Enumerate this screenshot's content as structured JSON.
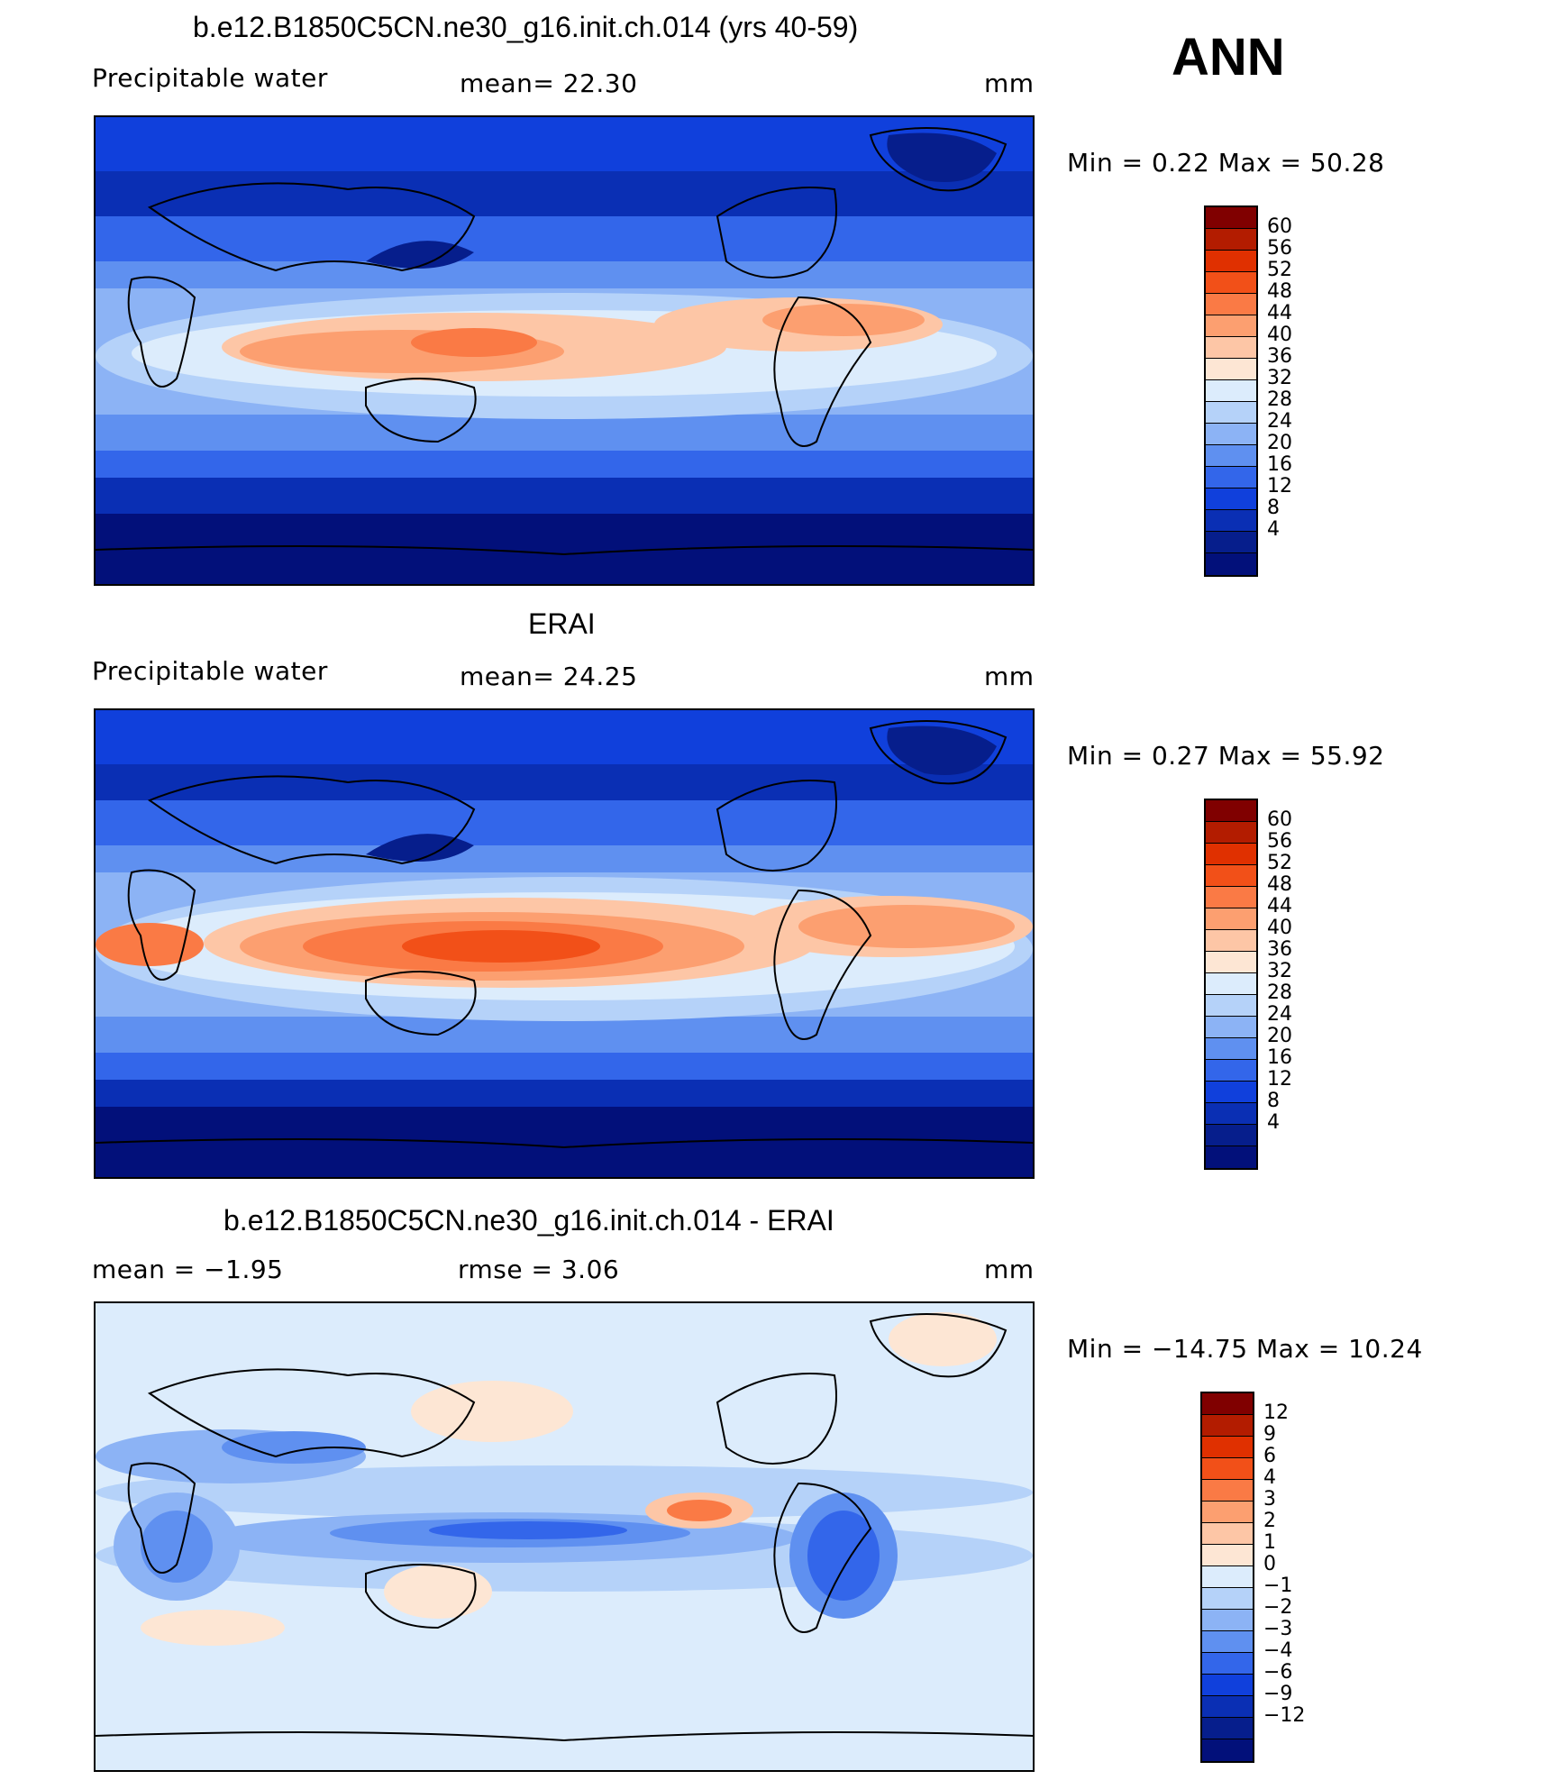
{
  "season": "ANN",
  "panels": [
    {
      "title": "b.e12.B1850C5CN.ne30_g16.init.ch.014 (yrs 40-59)",
      "left_label": "Precipitable  water",
      "mid_label": "mean=   22.30",
      "units": "mm",
      "minmax": "Min  =     0.22  Max  =    50.28",
      "colorbar": {
        "colors": [
          "#800000",
          "#b31c00",
          "#e03000",
          "#f25018",
          "#fa7a45",
          "#fc9f70",
          "#fdc6a6",
          "#fde6d4",
          "#dcecfc",
          "#b5d2f9",
          "#8cb3f5",
          "#5f90f0",
          "#3366ea",
          "#1040dc",
          "#0a2fb4",
          "#061e8c",
          "#02107a"
        ],
        "labels": [
          "60",
          "56",
          "52",
          "48",
          "44",
          "40",
          "36",
          "32",
          "28",
          "24",
          "20",
          "16",
          "12",
          "8",
          "4"
        ]
      }
    },
    {
      "title": "ERAI",
      "left_label": "Precipitable  water",
      "mid_label": "mean=   24.25",
      "units": "mm",
      "minmax": "Min  =     0.27  Max  =    55.92",
      "colorbar": {
        "colors": [
          "#800000",
          "#b31c00",
          "#e03000",
          "#f25018",
          "#fa7a45",
          "#fc9f70",
          "#fdc6a6",
          "#fde6d4",
          "#dcecfc",
          "#b5d2f9",
          "#8cb3f5",
          "#5f90f0",
          "#3366ea",
          "#1040dc",
          "#0a2fb4",
          "#061e8c",
          "#02107a"
        ],
        "labels": [
          "60",
          "56",
          "52",
          "48",
          "44",
          "40",
          "36",
          "32",
          "28",
          "24",
          "20",
          "16",
          "12",
          "8",
          "4"
        ]
      }
    },
    {
      "title": "b.e12.B1850C5CN.ne30_g16.init.ch.014 - ERAI",
      "left_label": "mean  =    −1.95",
      "mid_label": "rmse  =     3.06",
      "units": "mm",
      "minmax": "Min  =  −14.75  Max  =    10.24",
      "colorbar": {
        "colors": [
          "#800000",
          "#b31c00",
          "#e03000",
          "#f25018",
          "#fa7a45",
          "#fc9f70",
          "#fdc6a6",
          "#fde6d4",
          "#dcecfc",
          "#b5d2f9",
          "#8cb3f5",
          "#5f90f0",
          "#3366ea",
          "#1040dc",
          "#0a2fb4",
          "#061e8c",
          "#02107a"
        ],
        "labels": [
          "12",
          "9",
          "6",
          "4",
          "3",
          "2",
          "1",
          "0",
          "−1",
          "−2",
          "−3",
          "−4",
          "−6",
          "−9",
          "−12"
        ]
      }
    }
  ]
}
